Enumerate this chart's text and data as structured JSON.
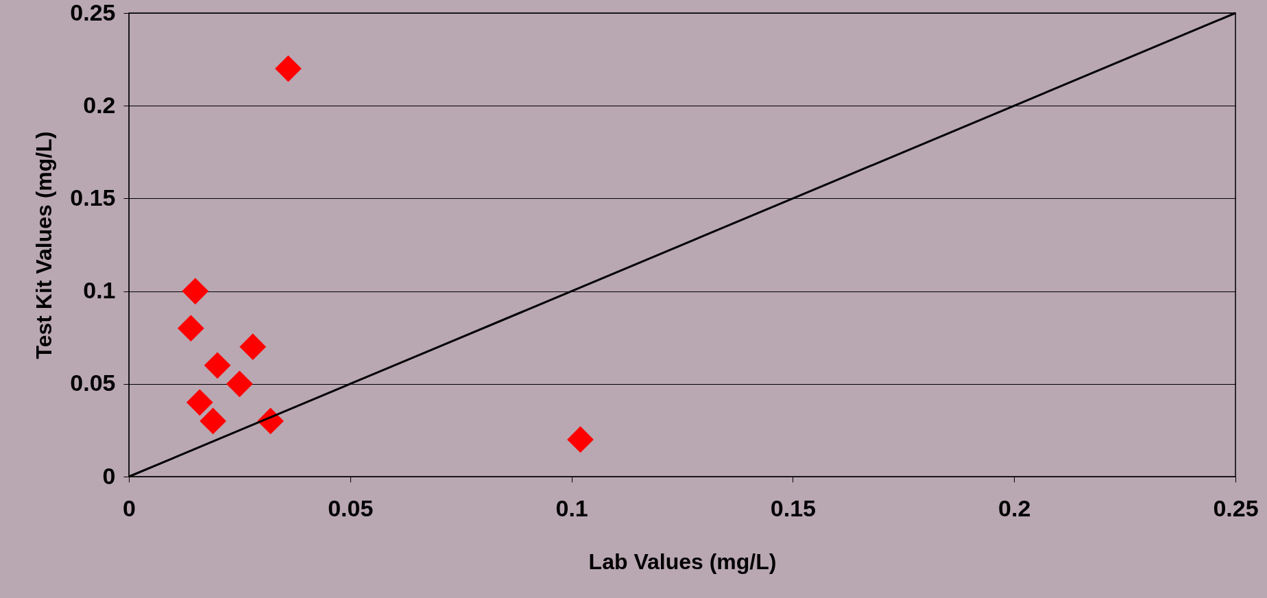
{
  "chart_data": {
    "type": "scatter",
    "xlabel": "Lab Values (mg/L)",
    "ylabel": "Test Kit Values (mg/L)",
    "xlim": [
      0,
      0.25
    ],
    "ylim": [
      0,
      0.25
    ],
    "xticks": [
      0,
      0.05,
      0.1,
      0.15,
      0.2,
      0.25
    ],
    "yticks": [
      0,
      0.05,
      0.1,
      0.15,
      0.2,
      0.25
    ],
    "grid": "y",
    "marker": "diamond",
    "series": [
      {
        "color": "#ff0000",
        "x": [
          0.036,
          0.015,
          0.014,
          0.02,
          0.028,
          0.025,
          0.016,
          0.019,
          0.032,
          0.102
        ],
        "values": [
          0.22,
          0.1,
          0.08,
          0.06,
          0.07,
          0.05,
          0.04,
          0.03,
          0.03,
          0.02
        ]
      },
      {
        "type": "line",
        "color": "#000000",
        "x": [
          0,
          0.25
        ],
        "values": [
          0,
          0.25
        ],
        "marker": "none",
        "line_style": "solid"
      }
    ]
  }
}
